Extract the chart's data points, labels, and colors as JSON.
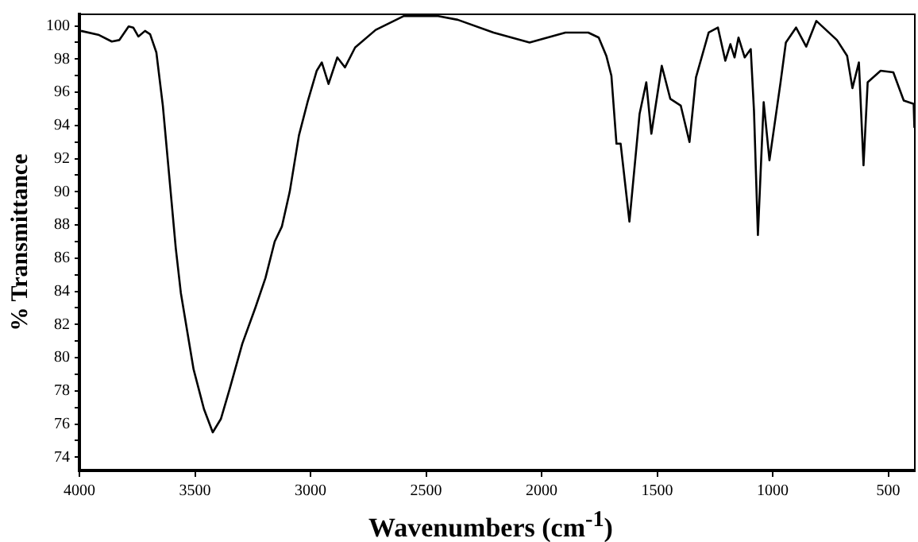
{
  "chart_data": {
    "type": "line",
    "xlabel": "Wavenumbers (cm$^{-1}$)",
    "ylabel": "% Transmittance",
    "x": [
      3993,
      3915,
      3860,
      3827,
      3787,
      3767,
      3745,
      3716,
      3694,
      3667,
      3639,
      3583,
      3561,
      3506,
      3461,
      3423,
      3388,
      3350,
      3295,
      3239,
      3195,
      3155,
      3124,
      3090,
      3050,
      3011,
      2973,
      2951,
      2922,
      2884,
      2851,
      2807,
      2718,
      2596,
      2452,
      2363,
      2208,
      2052,
      1897,
      1798,
      1753,
      1720,
      1698,
      1676,
      1658,
      1620,
      1576,
      1547,
      1525,
      1480,
      1443,
      1398,
      1360,
      1332,
      1277,
      1237,
      1205,
      1183,
      1165,
      1148,
      1121,
      1095,
      1081,
      1064,
      1039,
      1014,
      966,
      943,
      899,
      855,
      811,
      722,
      678,
      655,
      627,
      607,
      589,
      533,
      478,
      433,
      390,
      387
    ],
    "series": [
      {
        "color": "#000000",
        "values": [
          99.7,
          99.45,
          99.06,
          99.15,
          99.97,
          99.9,
          99.36,
          99.7,
          99.5,
          98.4,
          95.2,
          86.6,
          83.9,
          79.3,
          76.9,
          75.5,
          76.3,
          78.1,
          80.85,
          83.0,
          84.8,
          87.0,
          87.9,
          90.0,
          93.4,
          95.5,
          97.3,
          97.8,
          96.5,
          98.1,
          97.5,
          98.7,
          99.76,
          100.6,
          100.6,
          100.37,
          99.6,
          99.0,
          99.6,
          99.6,
          99.3,
          98.2,
          97.0,
          92.9,
          92.9,
          88.2,
          94.7,
          96.6,
          93.5,
          97.6,
          95.6,
          95.2,
          93.0,
          96.9,
          99.6,
          99.9,
          97.9,
          98.9,
          98.1,
          99.3,
          98.1,
          98.6,
          94.9,
          87.4,
          95.4,
          91.9,
          96.6,
          99.0,
          99.9,
          98.75,
          100.3,
          99.15,
          98.2,
          96.25,
          97.8,
          91.6,
          96.6,
          97.3,
          97.2,
          95.5,
          95.3,
          93.9
        ]
      }
    ],
    "xlim": [
      4000,
      385
    ],
    "ylim": [
      73.2,
      100.7
    ],
    "xticks": [
      4000,
      3500,
      3000,
      2500,
      2000,
      1500,
      1000,
      500
    ],
    "yticks": [
      74,
      {
        "value": 75,
        "label": null
      },
      76,
      {
        "value": 77,
        "label": null
      },
      78,
      {
        "value": 79,
        "label": null
      },
      80,
      {
        "value": 81,
        "label": null
      },
      82,
      {
        "value": 83,
        "label": null
      },
      84,
      {
        "value": 85,
        "label": null
      },
      86,
      {
        "value": 87,
        "label": null
      },
      88,
      {
        "value": 89,
        "label": null
      },
      90,
      {
        "value": 91,
        "label": null
      },
      92,
      {
        "value": 93,
        "label": null
      },
      94,
      {
        "value": 95,
        "label": null
      },
      96,
      {
        "value": 97,
        "label": null
      },
      98,
      {
        "value": 99,
        "label": null
      },
      100
    ],
    "grid": false,
    "legend": false,
    "marker": "none",
    "line_style": "solid"
  }
}
